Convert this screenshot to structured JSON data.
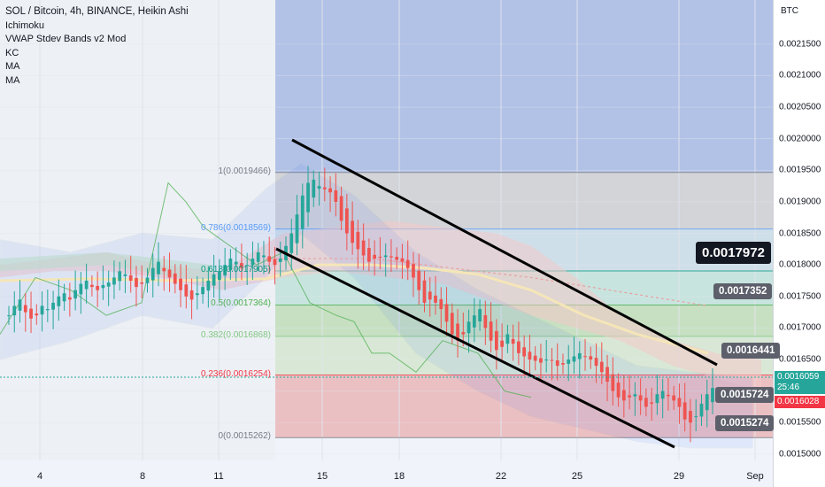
{
  "legend": {
    "title": "SOL / Bitcoin, 4h, BINANCE, Heikin Ashi",
    "indicators": [
      "Ichimoku",
      "VWAP Stdev Bands v2 Mod",
      "KC",
      "MA",
      "MA"
    ]
  },
  "axis": {
    "unit": "BTC",
    "y_ticks": [
      "0.0021500",
      "0.0021000",
      "0.0020500",
      "0.0020000",
      "0.0019500",
      "0.0019000",
      "0.0018500",
      "0.0018000",
      "0.0017500",
      "0.0017000",
      "0.0016500",
      "0.0016000",
      "0.0015500",
      "0.0015000"
    ],
    "x_ticks": [
      "4",
      "8",
      "11",
      "15",
      "18",
      "22",
      "25",
      "29",
      "Sep"
    ]
  },
  "badges": {
    "big": "0.0017972",
    "b1": "0.0017352",
    "b2": "0.0016441",
    "b3": "0.0015724",
    "b4": "0.0015274"
  },
  "price_tags": {
    "last_price": "0.0016059",
    "countdown": "25:46",
    "prev_price": "0.0016028"
  },
  "fib_levels": [
    {
      "label": "1(0.0019466)",
      "color": "#787b86"
    },
    {
      "label": "0.786(0.0018569)",
      "color": "#5b9cf6"
    },
    {
      "label": "0.618(0.0017905)",
      "color": "#089981"
    },
    {
      "label": "0.5(0.0017364)",
      "color": "#4caf50"
    },
    {
      "label": "0.382(0.0016868)",
      "color": "#81c784"
    },
    {
      "label": "0.236(0.0016254)",
      "color": "#f23645"
    },
    {
      "label": "0(0.0015262)",
      "color": "#787b86"
    }
  ],
  "colors": {
    "up": "#26a69a",
    "down": "#ef5350",
    "fib_top": "#a7b9e3",
    "fib_gray": "#c8c9cc",
    "fib_green": "#b5d7a9",
    "fib_red": "#e8a9ab",
    "cloud_red": "#f3c9c9",
    "cloud_green": "#c8e6c9"
  },
  "chart_data": {
    "type": "candlestick",
    "title": "SOL / Bitcoin, 4h, BINANCE, Heikin Ashi",
    "ylim": [
      0.00149,
      0.00222
    ],
    "x_labels": [
      "4",
      "8",
      "11",
      "15",
      "18",
      "22",
      "25",
      "29",
      "Sep"
    ],
    "closes": [
      0.00172,
      0.001735,
      0.001745,
      0.001725,
      0.001715,
      0.00172,
      0.001735,
      0.00173,
      0.00174,
      0.00175,
      0.001755,
      0.001745,
      0.00176,
      0.00177,
      0.001775,
      0.001765,
      0.00176,
      0.001768,
      0.001772,
      0.00178,
      0.00179,
      0.001785,
      0.001775,
      0.001765,
      0.00177,
      0.00178,
      0.001795,
      0.001805,
      0.00179,
      0.00178,
      0.00177,
      0.00176,
      0.00175,
      0.001745,
      0.001755,
      0.001765,
      0.001775,
      0.001785,
      0.00179,
      0.0018,
      0.00181,
      0.001805,
      0.001795,
      0.0018,
      0.00181,
      0.00182,
      0.001815,
      0.001805,
      0.0018,
      0.00181,
      0.00183,
      0.00185,
      0.00188,
      0.00191,
      0.00193,
      0.001935,
      0.001925,
      0.00192,
      0.001915,
      0.0019,
      0.00187,
      0.00185,
      0.001835,
      0.001825,
      0.001815,
      0.001805,
      0.00181,
      0.001812,
      0.001815,
      0.001812,
      0.001808,
      0.001805,
      0.001795,
      0.00178,
      0.00176,
      0.00174,
      0.001745,
      0.00174,
      0.00173,
      0.00171,
      0.00169,
      0.00168,
      0.00169,
      0.00171,
      0.00172,
      0.00173,
      0.0017,
      0.00168,
      0.001665,
      0.00167,
      0.00169,
      0.001675,
      0.00166,
      0.001655,
      0.00165,
      0.001648,
      0.001645,
      0.00165,
      0.001648,
      0.00164,
      0.001642,
      0.00165,
      0.001655,
      0.00166,
      0.001655,
      0.00165,
      0.00164,
      0.00163,
      0.001615,
      0.0016,
      0.00159,
      0.001585,
      0.00159,
      0.001595,
      0.001585,
      0.001575,
      0.00158,
      0.001595,
      0.0016,
      0.001592,
      0.001585,
      0.001575,
      0.001555,
      0.00155,
      0.00156,
      0.00158,
      0.001595,
      0.001605
    ]
  }
}
